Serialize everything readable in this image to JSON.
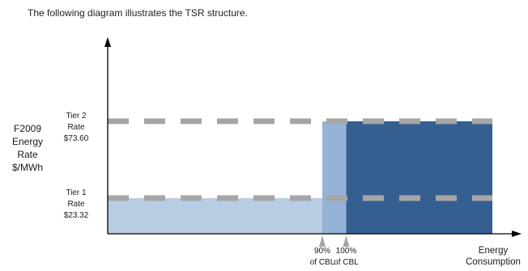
{
  "intro_text": "The following diagram illustrates the TSR structure.",
  "colors": {
    "tier1_fill": "#b8cce4",
    "mid_fill": "#95b3d7",
    "tier2_fill": "#365f91",
    "dash_line": "#a6a6a6",
    "axis": "#000000"
  },
  "chart_data": {
    "type": "area",
    "ylabel": [
      "F2009",
      "Energy",
      "Rate",
      "$/MWh"
    ],
    "xlabel": [
      "Energy",
      "Consumption"
    ],
    "tiers": [
      {
        "label": [
          "Tier 2",
          "Rate",
          "$73.60"
        ],
        "value": 73.6
      },
      {
        "label": [
          "Tier 1",
          "Rate",
          "$23.32"
        ],
        "value": 23.32
      }
    ],
    "x_markers": [
      {
        "label": [
          "90%",
          "of CBL"
        ],
        "pct_cbl": 90
      },
      {
        "label": [
          "100%",
          "of CBL"
        ],
        "pct_cbl": 100
      }
    ],
    "segments": [
      {
        "from_pct": 0,
        "to_pct": 90,
        "rate": 23.32,
        "color_key": "tier1_fill"
      },
      {
        "from_pct": 90,
        "to_pct": 100,
        "rate": 73.6,
        "color_key": "mid_fill"
      },
      {
        "from_pct": 100,
        "to_pct": 185,
        "rate": 73.6,
        "color_key": "tier2_fill"
      }
    ],
    "x_max_pct": 185,
    "ylim": [
      0,
      100
    ],
    "grid": false,
    "legend": "none"
  }
}
